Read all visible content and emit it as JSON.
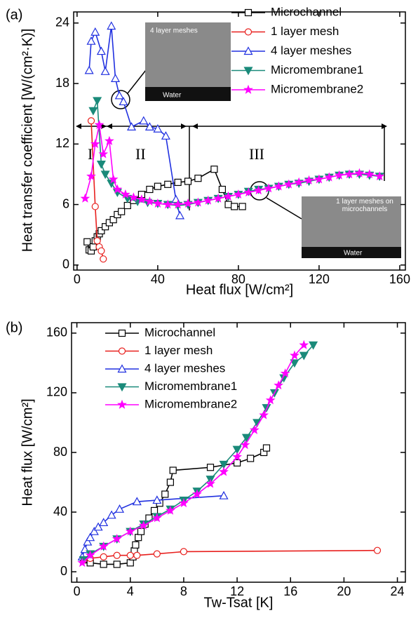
{
  "chart_data": [
    {
      "type": "line",
      "panel_label": "(a)",
      "x_label": "Heat flux [W/cm²]",
      "y_label": "Heat transfer coefficient [W/(cm²·K)]",
      "xlim": [
        -1.7,
        162.8
      ],
      "ylim": [
        -0.5,
        25.1
      ],
      "xticks": [
        0,
        40,
        80,
        120,
        160
      ],
      "yticks": [
        0,
        6,
        12,
        18,
        24
      ],
      "annotations": [
        "I",
        "II",
        "III",
        "4 layer meshes",
        "Water",
        "1 layer meshes on microchannels",
        "Water"
      ],
      "series": [
        {
          "name": "Microchannel",
          "color": "#000000",
          "marker": "square",
          "filled": false,
          "x": [
            5,
            6,
            7,
            8,
            9,
            10,
            11,
            12,
            14,
            16,
            18,
            20,
            22,
            25,
            28,
            32,
            36,
            40,
            45,
            50,
            55,
            60,
            68,
            72,
            75,
            78,
            82
          ],
          "values": [
            2.3,
            1.5,
            1.4,
            1.8,
            2.4,
            2.8,
            3.1,
            3.4,
            3.8,
            4.2,
            4.5,
            5,
            5.3,
            5.9,
            6.4,
            7,
            7.5,
            7.8,
            8,
            8.2,
            8.3,
            8.6,
            9.5,
            7.5,
            6,
            5.8,
            5.8
          ]
        },
        {
          "name": "1 layer mesh",
          "color": "#e8201e",
          "marker": "circle",
          "filled": false,
          "x": [
            7,
            9,
            10,
            11,
            12,
            13
          ],
          "values": [
            14.3,
            5.8,
            2.4,
            1.8,
            1.4,
            0.6
          ]
        },
        {
          "name": "4 layer meshes",
          "color": "#2030e0",
          "marker": "triangle-up",
          "filled": false,
          "x": [
            6,
            7,
            9,
            12,
            14,
            17,
            19,
            21,
            23,
            27,
            33,
            36,
            40,
            44,
            49,
            51
          ],
          "values": [
            19.3,
            22.2,
            23.1,
            21.2,
            19.2,
            23.7,
            18.5,
            16.8,
            16.2,
            13.7,
            14.3,
            13.7,
            13.5,
            12.8,
            6.5,
            4.9
          ]
        },
        {
          "name": "Micromembrane1",
          "color": "#1a8a7a",
          "marker": "triangle-down",
          "filled": true,
          "x": [
            8,
            10,
            12,
            14,
            17,
            20,
            25,
            30,
            35,
            40,
            45,
            50,
            55,
            60,
            65,
            70,
            75,
            80,
            85,
            90,
            95,
            100,
            105,
            110,
            115,
            120,
            125,
            130,
            135,
            140,
            145,
            150
          ],
          "values": [
            15.3,
            16.3,
            10,
            9,
            8.1,
            7.2,
            6.6,
            6.3,
            6.2,
            6.1,
            6,
            5.9,
            6,
            6.2,
            6.4,
            6.6,
            6.8,
            7,
            7.3,
            7.5,
            7.6,
            7.8,
            8,
            8.1,
            8.3,
            8.5,
            8.7,
            8.9,
            9,
            9,
            8.9,
            8.8
          ]
        },
        {
          "name": "Micromembrane2",
          "color": "#ff00ff",
          "marker": "star",
          "filled": true,
          "x": [
            4,
            7,
            9,
            11,
            13,
            16,
            18,
            20,
            24,
            28,
            32,
            36,
            40,
            45,
            50,
            55,
            60,
            65,
            70,
            75,
            80,
            85,
            90,
            95,
            100,
            105,
            110,
            115,
            120,
            125,
            130,
            135,
            140,
            145,
            150
          ],
          "values": [
            6.6,
            8.8,
            12,
            13.9,
            11,
            12.3,
            8.5,
            7.5,
            7,
            6.7,
            6.5,
            6.3,
            6.1,
            6,
            6,
            6.1,
            6.2,
            6.4,
            6.6,
            6.8,
            7,
            7.2,
            7.4,
            7.6,
            7.8,
            8,
            8.2,
            8.4,
            8.5,
            8.7,
            8.9,
            9,
            9.1,
            9,
            8.8
          ]
        }
      ]
    },
    {
      "type": "line",
      "panel_label": "(b)",
      "x_label": "Tw-Tsat [K]",
      "y_label": "Heat flux [W/cm²]",
      "xlim": [
        -0.4,
        24.6
      ],
      "ylim": [
        -7,
        167
      ],
      "xticks": [
        0,
        4,
        8,
        12,
        16,
        20,
        24
      ],
      "yticks": [
        0,
        40,
        80,
        120,
        160
      ],
      "series": [
        {
          "name": "Microchannel",
          "color": "#000000",
          "marker": "square",
          "filled": false,
          "x": [
            0.5,
            1,
            2,
            3,
            4,
            4.2,
            4.3,
            4.4,
            4.6,
            4.8,
            5.1,
            5.4,
            5.8,
            6.2,
            6.6,
            7,
            7.2,
            10,
            12,
            13,
            14,
            14.2
          ],
          "values": [
            8,
            6,
            5,
            5,
            6,
            10,
            14,
            18,
            23,
            27,
            32,
            36,
            41,
            46,
            52,
            60,
            68,
            70,
            73,
            76,
            80,
            83
          ]
        },
        {
          "name": "1 layer mesh",
          "color": "#e8201e",
          "marker": "circle",
          "filled": false,
          "x": [
            0.5,
            1,
            2,
            3,
            4,
            4.5,
            6,
            8,
            22.5
          ],
          "values": [
            8,
            9,
            10,
            11,
            11,
            11,
            12,
            13.5,
            14.3
          ]
        },
        {
          "name": "4 layer meshes",
          "color": "#2030e0",
          "marker": "triangle-up",
          "filled": false,
          "x": [
            0.4,
            0.6,
            0.8,
            1,
            1.3,
            1.6,
            2,
            2.6,
            3.2,
            4.5,
            6,
            11
          ],
          "values": [
            10,
            15,
            20,
            23,
            27,
            30,
            33,
            38,
            42,
            47,
            48,
            51
          ]
        },
        {
          "name": "Micromembrane1",
          "color": "#1a8a7a",
          "marker": "triangle-down",
          "filled": true,
          "x": [
            0.5,
            1,
            2,
            3,
            4,
            5,
            6,
            7,
            8,
            9,
            10,
            11,
            12,
            12.7,
            13.5,
            14.2,
            14.8,
            15.5,
            16.3,
            17,
            17.7
          ],
          "values": [
            8,
            12,
            17,
            22,
            27,
            32,
            37,
            42,
            48,
            54,
            62,
            72,
            82,
            90,
            100,
            110,
            120,
            130,
            140,
            145,
            152
          ]
        },
        {
          "name": "Micromembrane2",
          "color": "#ff00ff",
          "marker": "star",
          "filled": true,
          "x": [
            0.4,
            1,
            2,
            3,
            4,
            5,
            6,
            7,
            8,
            9,
            10,
            11,
            12,
            12.6,
            13.3,
            14,
            14.5,
            15.1,
            15.6,
            16.3,
            17
          ],
          "values": [
            6,
            11,
            17,
            22,
            27,
            31,
            36,
            41,
            46,
            52,
            59,
            67,
            77,
            85,
            95,
            105,
            115,
            125,
            133,
            145,
            152
          ]
        }
      ]
    }
  ]
}
